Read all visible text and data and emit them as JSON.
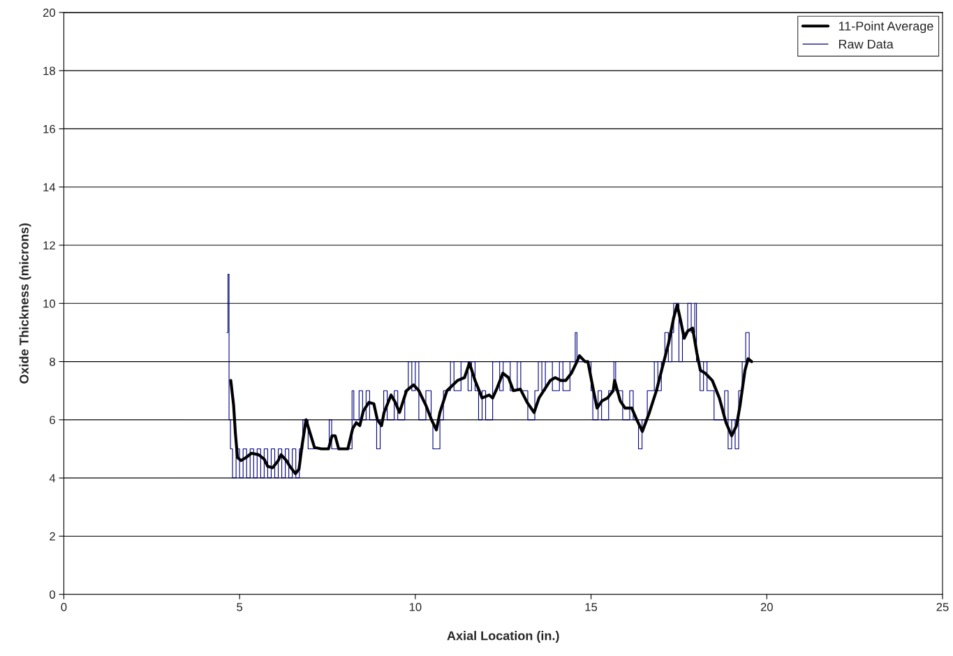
{
  "chart_data": {
    "type": "line",
    "xlabel": "Axial Location (in.)",
    "ylabel": "Oxide Thickness (microns)",
    "xlim": [
      0,
      25
    ],
    "xticks": [
      0,
      5,
      10,
      15,
      20,
      25
    ],
    "ylim": [
      0,
      20
    ],
    "yticks": [
      0,
      2,
      4,
      6,
      8,
      10,
      12,
      14,
      16,
      18,
      20
    ],
    "grid": "y",
    "legend": "top right",
    "marker": "none",
    "series": [
      {
        "name": "11-Point Average",
        "color": "#000000",
        "line_style": "solid",
        "x": [
          4.75,
          4.83,
          4.88,
          4.94,
          5.04,
          5.18,
          5.34,
          5.54,
          5.7,
          5.8,
          5.94,
          6.1,
          6.18,
          6.33,
          6.43,
          6.59,
          6.69,
          6.77,
          6.89,
          7.03,
          7.13,
          7.33,
          7.53,
          7.63,
          7.72,
          7.82,
          8.08,
          8.22,
          8.32,
          8.42,
          8.52,
          8.68,
          8.82,
          8.92,
          9.04,
          9.11,
          9.31,
          9.43,
          9.55,
          9.75,
          9.95,
          10.1,
          10.3,
          10.46,
          10.6,
          10.7,
          10.9,
          11.2,
          11.4,
          11.54,
          11.7,
          11.9,
          12.1,
          12.2,
          12.33,
          12.49,
          12.65,
          12.79,
          12.99,
          13.18,
          13.38,
          13.52,
          13.68,
          13.84,
          13.98,
          14.14,
          14.28,
          14.44,
          14.58,
          14.67,
          14.83,
          14.91,
          15.07,
          15.17,
          15.31,
          15.47,
          15.63,
          15.67,
          15.83,
          15.97,
          16.16,
          16.3,
          16.46,
          16.66,
          16.86,
          17.06,
          17.21,
          17.35,
          17.45,
          17.55,
          17.65,
          17.75,
          17.89,
          18.01,
          18.11,
          18.25,
          18.45,
          18.65,
          18.84,
          19.0,
          19.14,
          19.24,
          19.38,
          19.47,
          19.57
        ],
        "values": [
          7.35,
          6.5,
          5.55,
          4.7,
          4.6,
          4.7,
          4.85,
          4.8,
          4.65,
          4.4,
          4.35,
          4.6,
          4.8,
          4.6,
          4.4,
          4.15,
          4.3,
          5.05,
          6.0,
          5.45,
          5.05,
          5.0,
          5.0,
          5.45,
          5.45,
          5.0,
          5.0,
          5.7,
          5.9,
          5.8,
          6.3,
          6.6,
          6.55,
          6.0,
          5.8,
          6.25,
          6.85,
          6.6,
          6.25,
          7.0,
          7.2,
          7.0,
          6.5,
          6.0,
          5.65,
          6.25,
          7.0,
          7.35,
          7.45,
          7.95,
          7.35,
          6.75,
          6.85,
          6.75,
          7.1,
          7.6,
          7.45,
          7.0,
          7.05,
          6.6,
          6.25,
          6.75,
          7.05,
          7.35,
          7.45,
          7.35,
          7.35,
          7.6,
          7.95,
          8.2,
          8.0,
          8.0,
          7.0,
          6.4,
          6.65,
          6.75,
          7.0,
          7.35,
          6.65,
          6.4,
          6.4,
          6.0,
          5.6,
          6.25,
          7.0,
          7.95,
          8.65,
          9.5,
          9.95,
          9.4,
          8.8,
          9.05,
          9.15,
          8.3,
          7.7,
          7.6,
          7.35,
          6.75,
          5.9,
          5.45,
          5.8,
          6.5,
          7.7,
          8.1,
          8.0
        ]
      },
      {
        "name": "Raw Data",
        "color": "#000080",
        "type": "step",
        "line_style": "solid",
        "x": [
          4.64,
          4.67,
          4.7,
          4.74,
          4.8,
          4.9,
          5.0,
          5.1,
          5.2,
          5.3,
          5.4,
          5.5,
          5.6,
          5.7,
          5.8,
          5.9,
          6.0,
          6.1,
          6.2,
          6.3,
          6.4,
          6.5,
          6.6,
          6.7,
          6.8,
          6.95,
          7.55,
          7.62,
          8.2,
          8.25,
          8.4,
          8.5,
          8.6,
          8.7,
          8.9,
          9.0,
          9.1,
          9.2,
          9.4,
          9.5,
          9.7,
          9.8,
          9.9,
          10.0,
          10.1,
          10.3,
          10.45,
          10.5,
          10.7,
          10.8,
          11.0,
          11.1,
          11.3,
          11.5,
          11.6,
          11.7,
          11.8,
          11.9,
          12.0,
          12.2,
          12.4,
          12.5,
          12.7,
          12.9,
          13.0,
          13.2,
          13.4,
          13.5,
          13.6,
          13.7,
          13.9,
          14.1,
          14.2,
          14.4,
          14.55,
          14.6,
          15.0,
          15.05,
          15.2,
          15.3,
          15.5,
          15.65,
          15.7,
          15.9,
          16.1,
          16.2,
          16.35,
          16.45,
          16.6,
          16.8,
          16.9,
          17.0,
          17.1,
          17.2,
          17.3,
          17.35,
          17.5,
          17.6,
          17.75,
          17.85,
          17.95,
          18.0,
          18.1,
          18.2,
          18.3,
          18.5,
          18.8,
          18.9,
          19.0,
          19.1,
          19.2,
          19.3,
          19.4,
          19.5
        ],
        "values": [
          9,
          11,
          6,
          5,
          4,
          5,
          4,
          5,
          4,
          5,
          4,
          5,
          4,
          5,
          4,
          5,
          4,
          5,
          4,
          5,
          4,
          5,
          4,
          5,
          6,
          5,
          6,
          5,
          7,
          6,
          7,
          6,
          7,
          6,
          5,
          6,
          7,
          6,
          7,
          6,
          7,
          8,
          7,
          8,
          6,
          7,
          6,
          5,
          6,
          7,
          8,
          7,
          8,
          7,
          8,
          7,
          6,
          7,
          6,
          8,
          7,
          8,
          7,
          8,
          7,
          6,
          7,
          8,
          7,
          8,
          7,
          8,
          7,
          8,
          9,
          8,
          7,
          6,
          7,
          6,
          7,
          8,
          7,
          6,
          7,
          6,
          5,
          6,
          7,
          8,
          7,
          8,
          9,
          8,
          9,
          10,
          8,
          9,
          10,
          9,
          10,
          8,
          7,
          8,
          7,
          6,
          7,
          5,
          6,
          5,
          7,
          8,
          9,
          8
        ]
      }
    ]
  }
}
